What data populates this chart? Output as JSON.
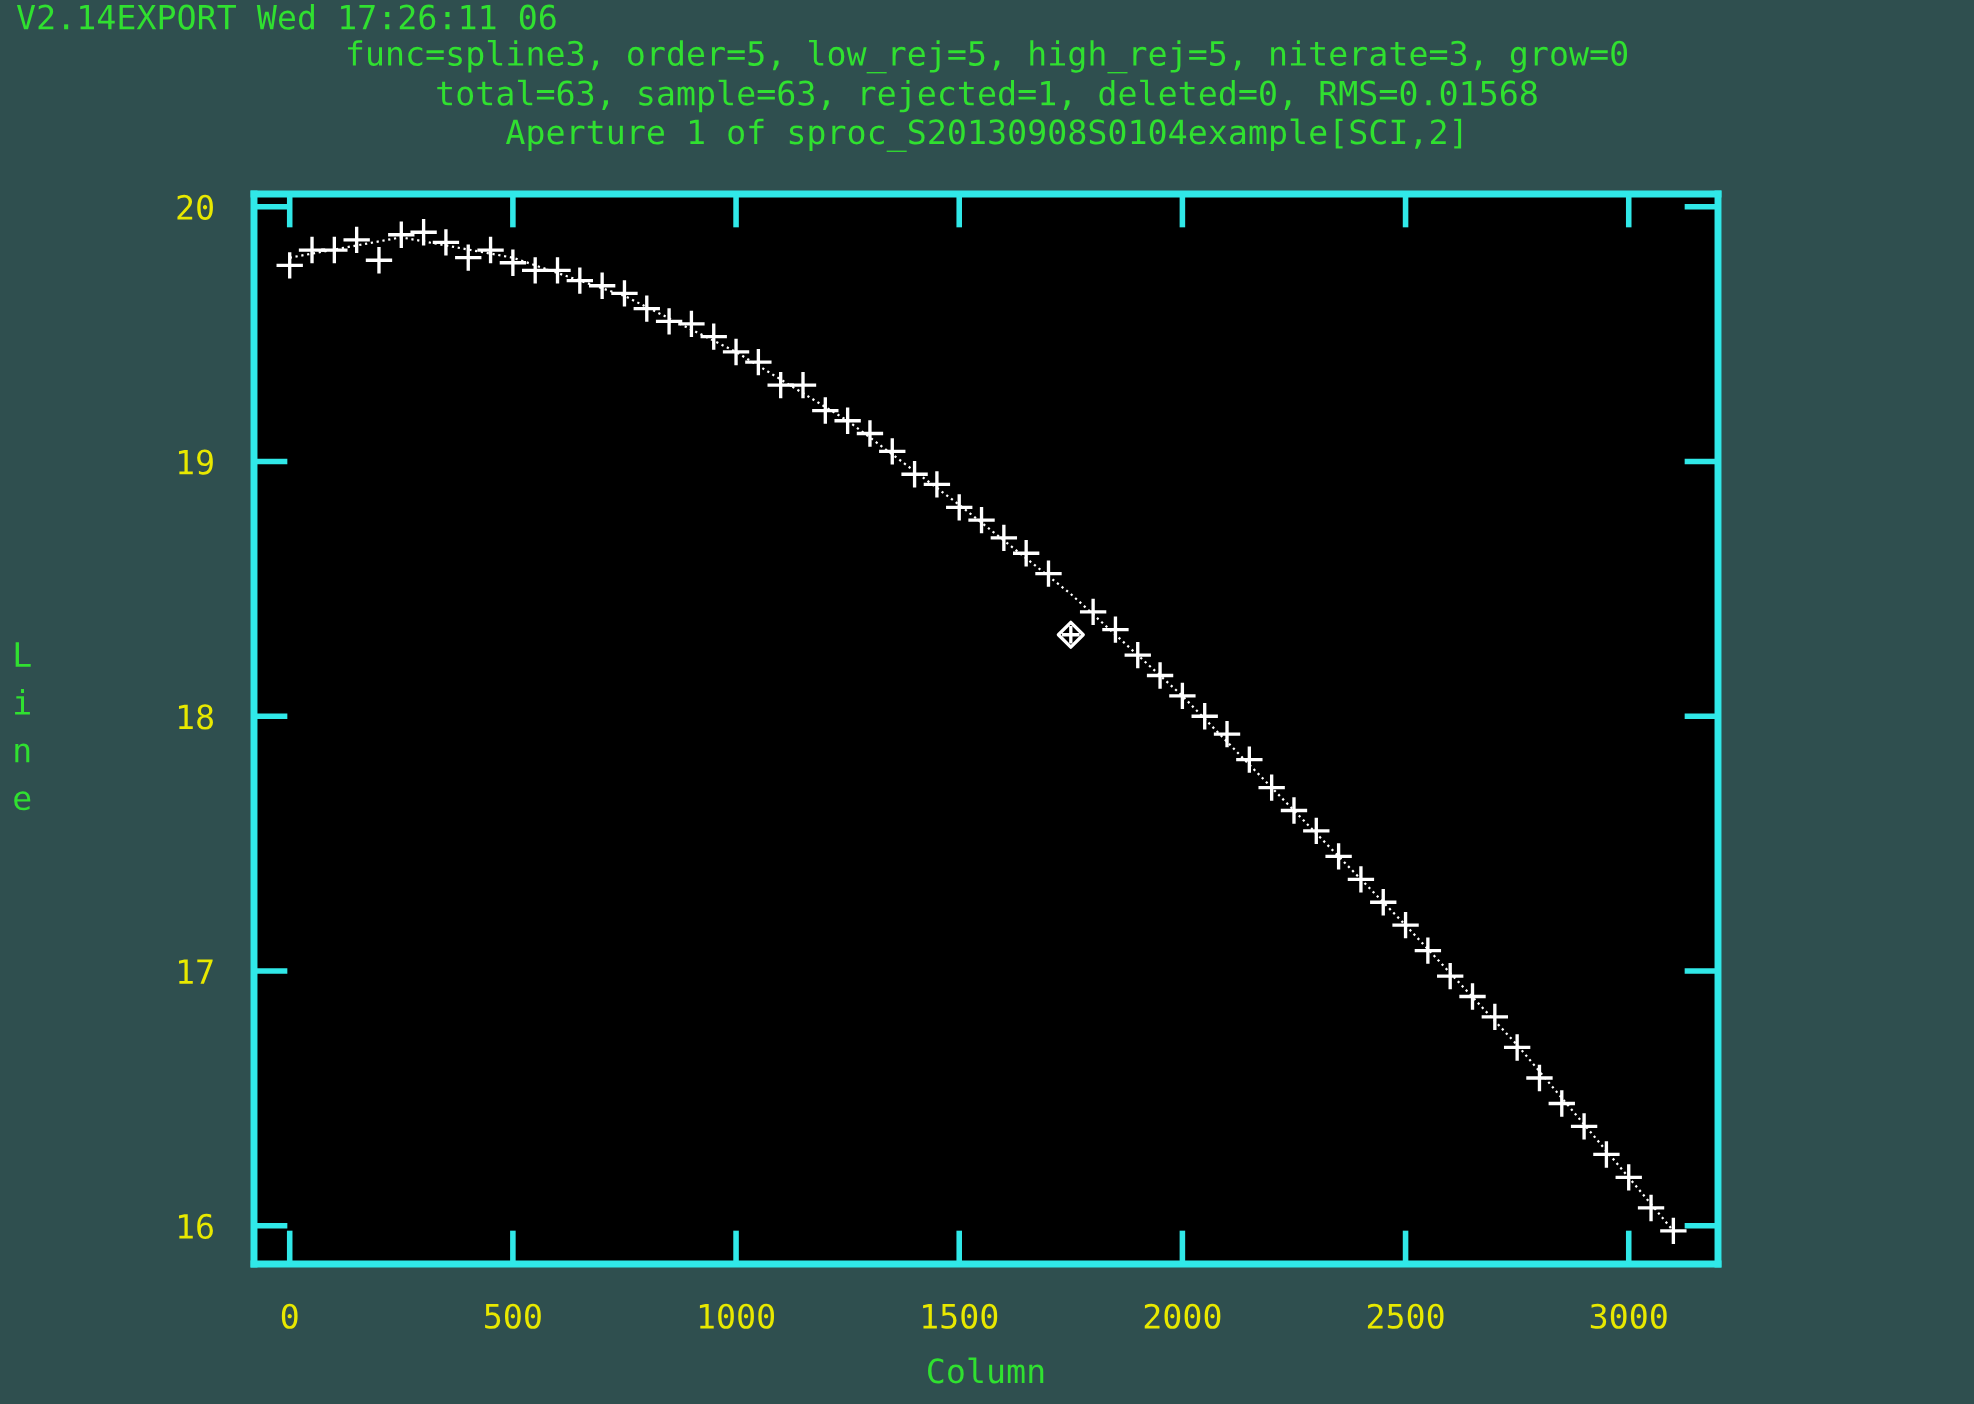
{
  "chart_data": {
    "type": "scatter",
    "title": "V2.14EXPORT Wed 17:26:11 06",
    "subtitle": "func=spline3, order=5, low_rej=5, high_rej=5, niterate=3, grow=0\ntotal=63, sample=63, rejected=1, deleted=0, RMS=0.01568\nAperture 1 of sproc_S20130908S0104example[SCI,2]",
    "xlabel": "Column",
    "ylabel": "Line",
    "x": [
      0,
      50,
      100,
      150,
      200,
      250,
      300,
      350,
      400,
      450,
      500,
      550,
      600,
      650,
      700,
      750,
      800,
      850,
      900,
      950,
      1000,
      1050,
      1100,
      1150,
      1200,
      1250,
      1300,
      1350,
      1400,
      1450,
      1500,
      1550,
      1600,
      1650,
      1700,
      1750,
      1800,
      1850,
      1900,
      1950,
      2000,
      2050,
      2100,
      2150,
      2200,
      2250,
      2300,
      2350,
      2400,
      2450,
      2500,
      2550,
      2600,
      2650,
      2700,
      2750,
      2800,
      2850,
      2900,
      2950,
      3000,
      3050,
      3100
    ],
    "series": [
      {
        "marker": "cross",
        "color": "#ffffff",
        "values": [
          19.77,
          19.83,
          19.83,
          19.87,
          19.79,
          19.89,
          19.9,
          19.86,
          19.8,
          19.83,
          19.78,
          19.75,
          19.75,
          19.71,
          19.69,
          19.66,
          19.6,
          19.55,
          19.54,
          19.49,
          19.43,
          19.39,
          19.3,
          19.3,
          19.2,
          19.16,
          19.11,
          19.04,
          18.95,
          18.91,
          18.82,
          18.77,
          18.7,
          18.64,
          18.56,
          null,
          18.41,
          18.34,
          18.24,
          18.16,
          18.08,
          18.0,
          17.93,
          17.83,
          17.72,
          17.63,
          17.55,
          17.45,
          17.36,
          17.27,
          17.18,
          17.08,
          16.98,
          16.9,
          16.82,
          16.7,
          16.58,
          16.48,
          16.39,
          16.28,
          16.19,
          16.07,
          15.98
        ]
      },
      {
        "marker": "diamond",
        "color": "#ffffff",
        "x": [
          1750
        ],
        "values": [
          18.32
        ]
      },
      {
        "type": "line",
        "line_style": "dotted",
        "color": "#ffffff",
        "x": [
          0,
          250,
          500,
          750,
          1000,
          1250,
          1500,
          1750,
          2000,
          2250,
          2500,
          2750,
          3000,
          3100
        ],
        "values": [
          19.8,
          19.88,
          19.8,
          19.65,
          19.43,
          19.16,
          18.83,
          18.48,
          18.08,
          17.63,
          17.18,
          16.71,
          16.19,
          15.98
        ]
      }
    ],
    "xlim": [
      -80,
      3200
    ],
    "ylim": [
      15.85,
      20.05
    ],
    "xticks": [
      0,
      500,
      1000,
      1500,
      2000,
      2500,
      3000
    ],
    "yticks": [
      16,
      17,
      18,
      19,
      20
    ],
    "grid": false
  }
}
